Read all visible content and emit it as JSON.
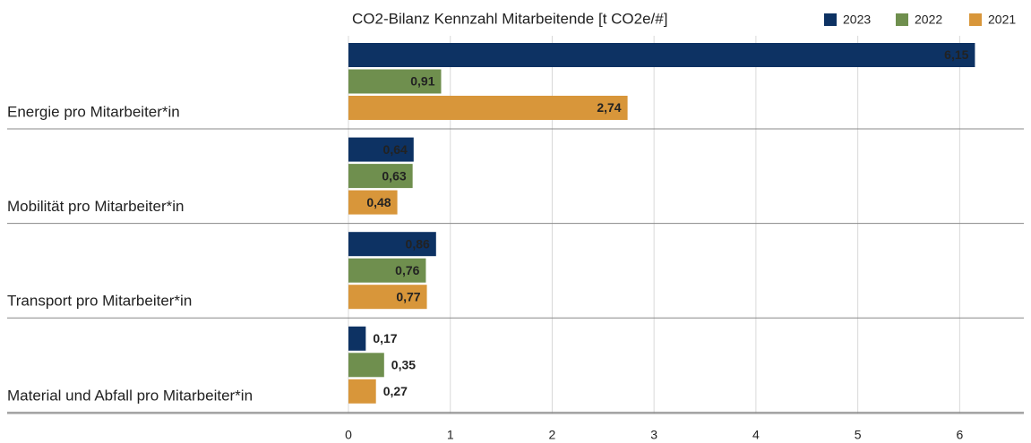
{
  "chart_data": {
    "type": "bar",
    "orientation": "horizontal",
    "title": "CO2-Bilanz Kennzahl Mitarbeitende [t CO2e/#]",
    "categories": [
      "Energie pro Mitarbeiter*in",
      "Mobilität pro Mitarbeiter*in",
      "Transport pro Mitarbeiter*in",
      "Material und Abfall pro Mitarbeiter*in"
    ],
    "series": [
      {
        "name": "2023",
        "color": "#0d3263",
        "values": [
          6.15,
          0.64,
          0.86,
          0.17
        ],
        "value_labels": [
          "6,15",
          "0,64",
          "0,86",
          "0,17"
        ]
      },
      {
        "name": "2022",
        "color": "#6f8f4e",
        "values": [
          0.91,
          0.63,
          0.76,
          0.35
        ],
        "value_labels": [
          "0,91",
          "0,63",
          "0,76",
          "0,35"
        ]
      },
      {
        "name": "2021",
        "color": "#d8963a",
        "values": [
          2.74,
          0.48,
          0.77,
          0.27
        ],
        "value_labels": [
          "2,74",
          "0,48",
          "0,77",
          "0,27"
        ]
      }
    ],
    "xlim": [
      0,
      6.63
    ],
    "xticks": [
      0,
      1,
      2,
      3,
      4,
      5,
      6
    ],
    "grid": true,
    "legend": "top-right"
  }
}
